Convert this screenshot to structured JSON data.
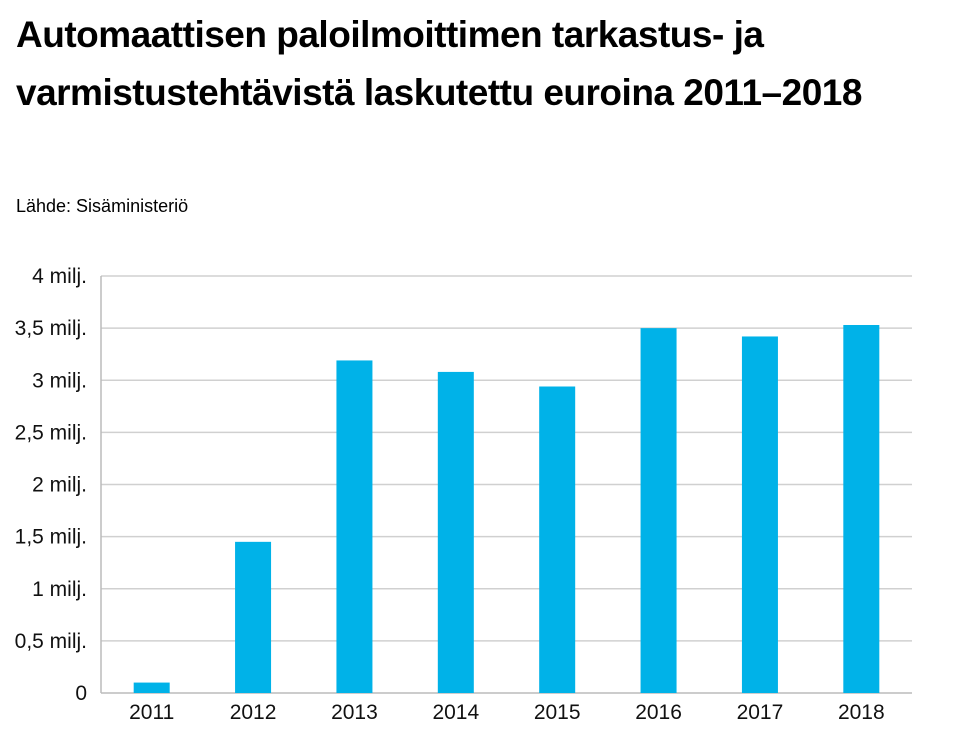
{
  "chart_data": {
    "type": "bar",
    "title": "Automaattisen paloilmoittimen tarkastus- ja varmistustehtävistä laskutettu euroina 2011–2018",
    "source": "Lähde: Sisäministeriö",
    "categories": [
      "2011",
      "2012",
      "2013",
      "2014",
      "2015",
      "2016",
      "2017",
      "2018"
    ],
    "values": [
      0.1,
      1.45,
      3.19,
      3.08,
      2.94,
      3.5,
      3.42,
      3.53
    ],
    "unit": "milj. euroa",
    "ylim": [
      0,
      4
    ],
    "yticks": [
      0,
      0.5,
      1,
      1.5,
      2,
      2.5,
      3,
      3.5,
      4
    ],
    "ytick_labels": [
      "0",
      "0,5 milj.",
      "1 milj.",
      "1,5 milj.",
      "2 milj.",
      "2,5 milj.",
      "3 milj.",
      "3,5 milj.",
      "4 milj."
    ],
    "grid": true,
    "bar_color": "#00b2e8",
    "xlabel": "",
    "ylabel": ""
  }
}
